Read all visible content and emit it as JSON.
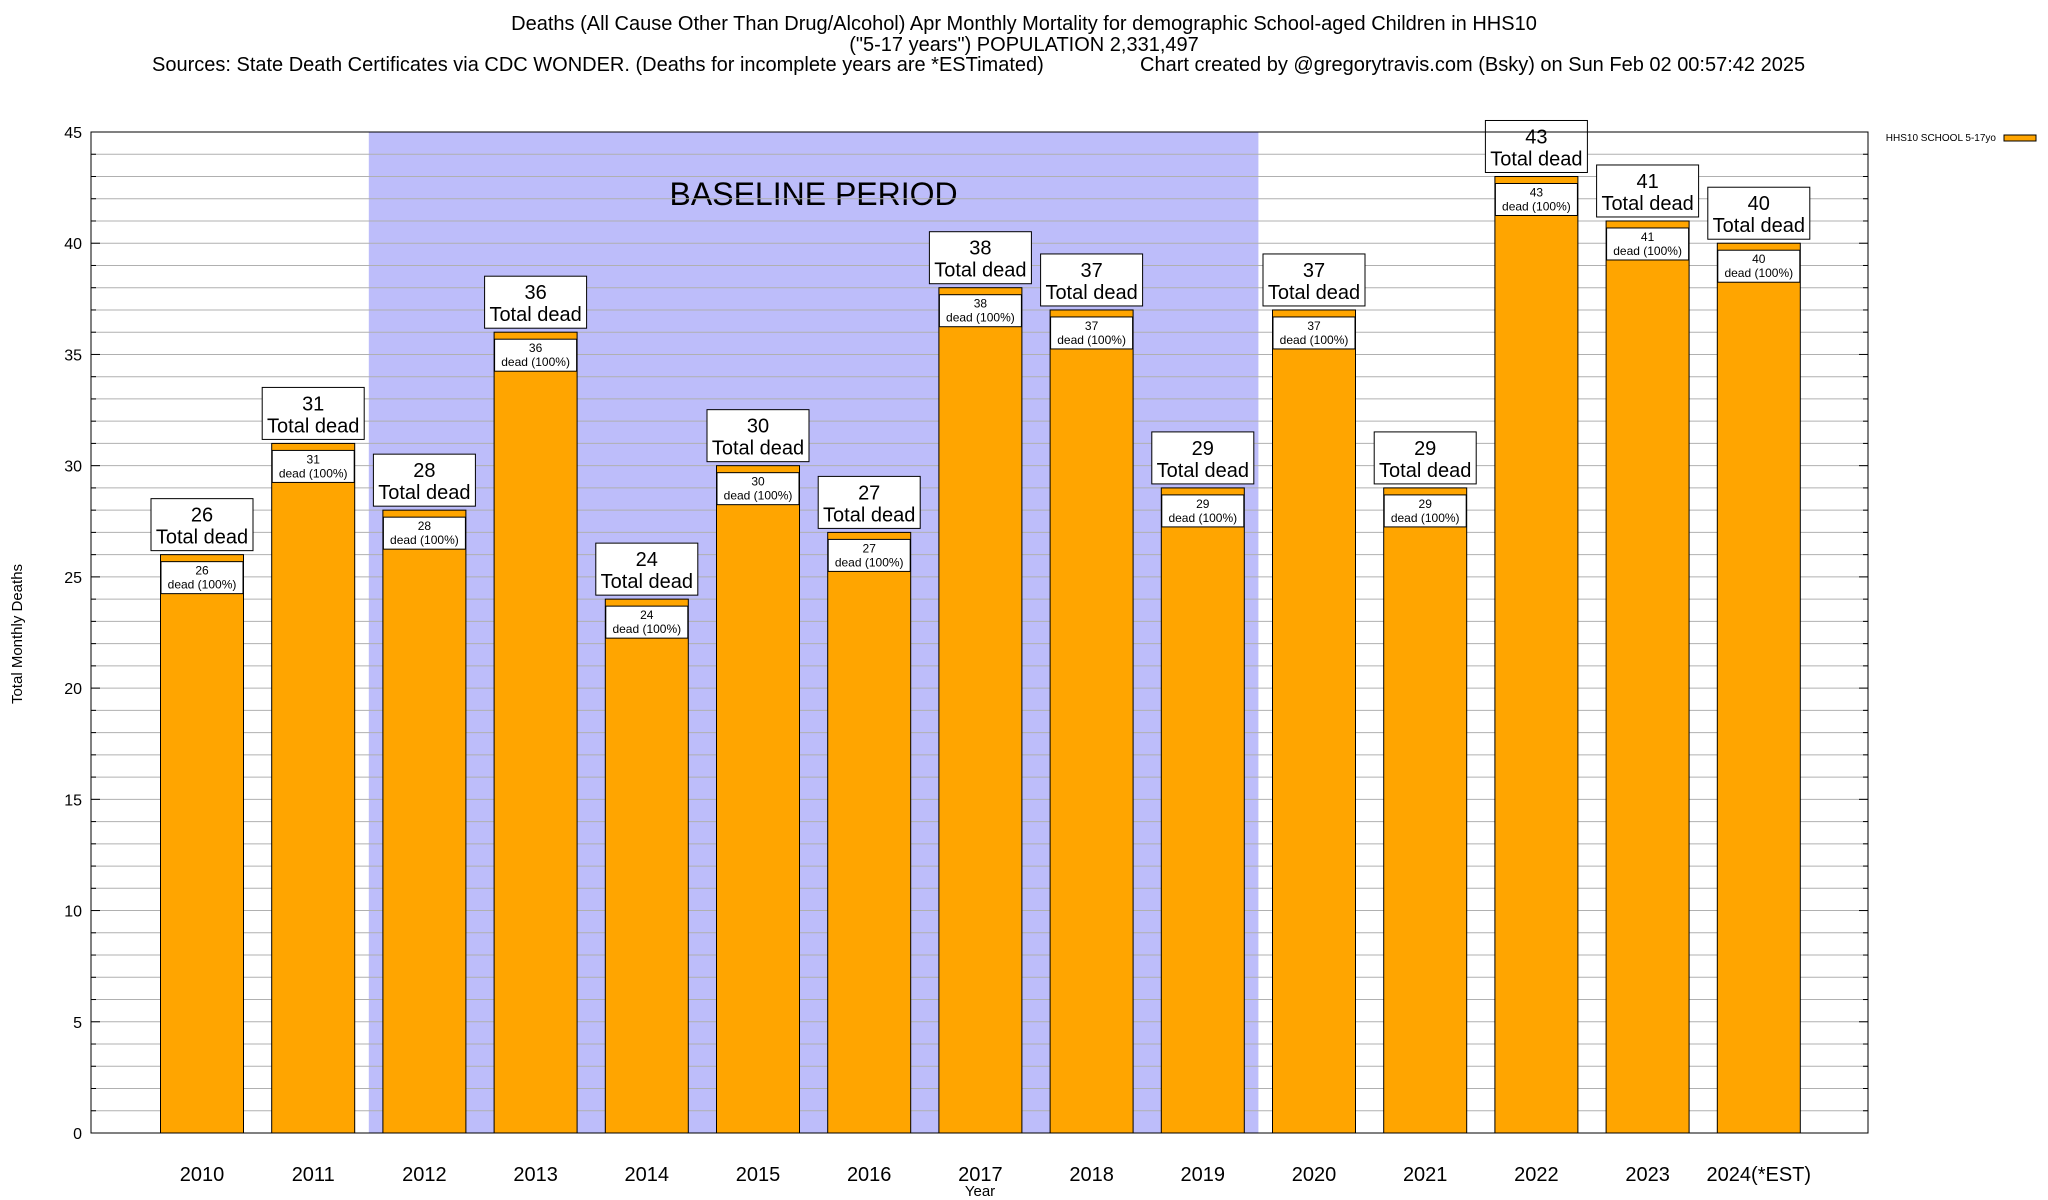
{
  "title": {
    "line1": "Deaths (All Cause Other Than Drug/Alcohol) Apr Monthly Mortality for demographic School-aged Children in HHS10",
    "line2": "(\"5-17 years\") POPULATION 2,331,497",
    "sources": "Sources: State Death Certificates via CDC WONDER. (Deaths for incomplete years are *ESTimated)",
    "credit": "Chart created by @gregorytravis.com (Bsky) on Sun Feb 02 00:57:42 2025"
  },
  "colors": {
    "bar": "#FFA500",
    "baseline_band": "#BDBDFA",
    "grid": "#B0B0B0",
    "frame": "#000000"
  },
  "chart_data": {
    "type": "bar",
    "categories": [
      "2010",
      "2011",
      "2012",
      "2013",
      "2014",
      "2015",
      "2016",
      "2017",
      "2018",
      "2019",
      "2020",
      "2021",
      "2022",
      "2023",
      "2024(*EST)"
    ],
    "series": [
      {
        "name": "HHS10 SCHOOL 5-17yo",
        "values": [
          26,
          31,
          28,
          36,
          24,
          30,
          27,
          38,
          37,
          29,
          37,
          29,
          43,
          41,
          40
        ]
      }
    ],
    "total_label_suffix": "Total dead",
    "inner_label_suffix": "dead (100%)",
    "xlabel": "Year",
    "ylabel": "Total Monthly Deaths",
    "ylim": [
      0,
      45
    ],
    "yticks": [
      0,
      5,
      10,
      15,
      20,
      25,
      30,
      35,
      40,
      45
    ],
    "minor_step": 1,
    "baseline_band": {
      "from": "2012",
      "to": "2019",
      "label": "BASELINE PERIOD"
    },
    "grid": true,
    "legend": {
      "position": "top-right",
      "label": "HHS10 SCHOOL 5-17yo"
    }
  }
}
